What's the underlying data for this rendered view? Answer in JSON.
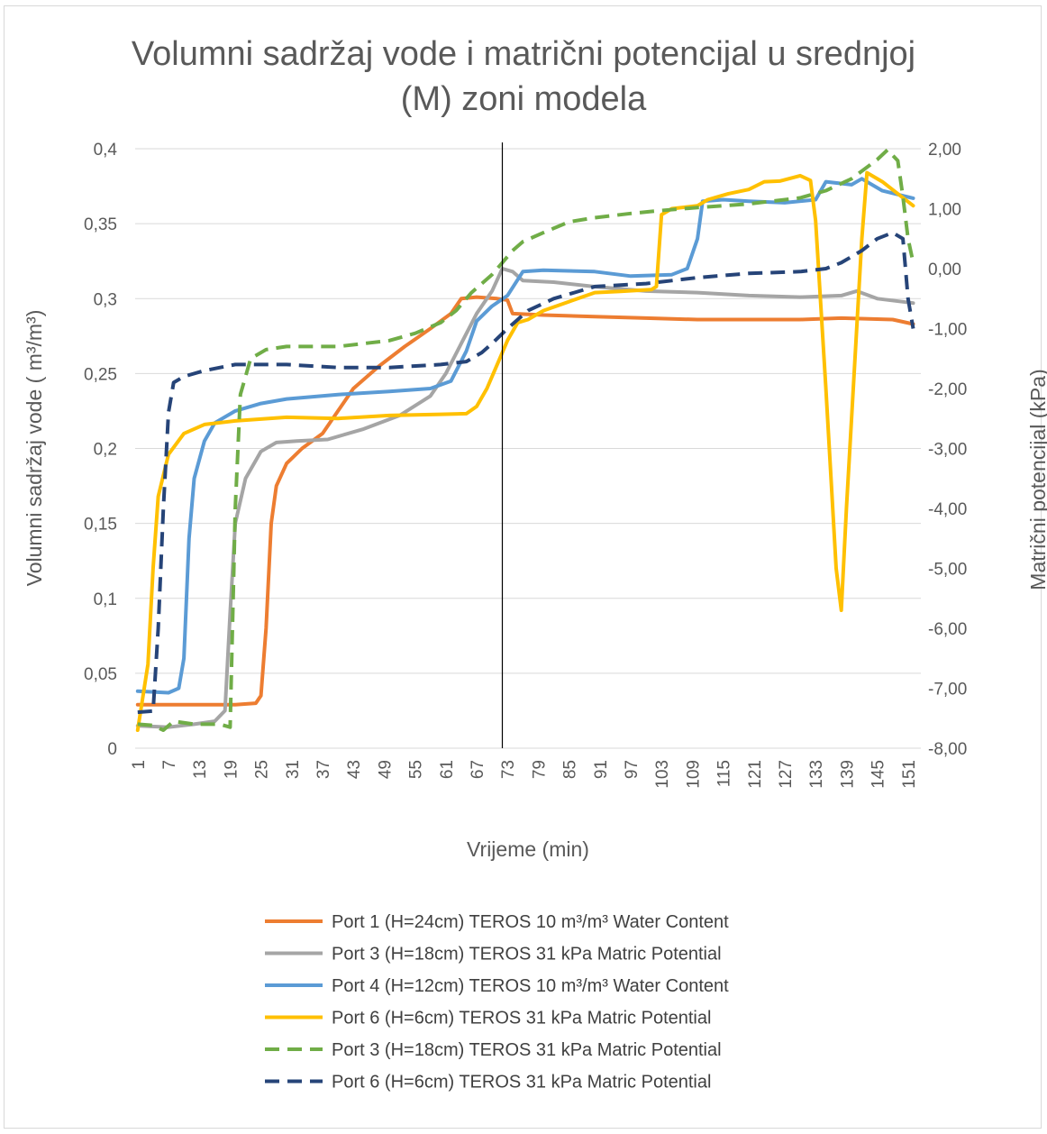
{
  "chart_data": {
    "type": "line",
    "title_line1": "Volumni sadržaj vode i matrični potencijal u srednjoj",
    "title_line2": "(M) zoni modela",
    "xlabel": "Vrijeme (min)",
    "ylabel_left": "Volumni sadržaj vode ( m³/m³)",
    "ylabel_right": "Matrični potencijal (kPa)",
    "x_range": [
      1,
      153
    ],
    "x_tick_labels": [
      "1",
      "7",
      "13",
      "19",
      "25",
      "31",
      "37",
      "43",
      "49",
      "55",
      "61",
      "67",
      "73",
      "79",
      "85",
      "91",
      "97",
      "103",
      "109",
      "115",
      "121",
      "127",
      "133",
      "139",
      "145",
      "151"
    ],
    "y_left_range": [
      0,
      0.4
    ],
    "y_left_ticks": [
      "0",
      "0,05",
      "0,1",
      "0,15",
      "0,2",
      "0,25",
      "0,3",
      "0,35",
      "0,4"
    ],
    "y_right_range": [
      -8,
      2
    ],
    "y_right_ticks": [
      "-8,00",
      "-7,00",
      "-6,00",
      "-5,00",
      "-4,00",
      "-3,00",
      "-2,00",
      "-1,00",
      "0,00",
      "1,00",
      "2,00"
    ],
    "grid": true,
    "legend_position": "bottom",
    "vertical_marker_x": 72,
    "series": [
      {
        "name": "Port 1 (H=24cm) TEROS 10  m³/m³ Water Content",
        "color": "#ED7D31",
        "dash": "solid",
        "axis": "left",
        "points": [
          [
            1,
            0.029
          ],
          [
            10,
            0.029
          ],
          [
            20,
            0.029
          ],
          [
            24,
            0.03
          ],
          [
            25,
            0.035
          ],
          [
            26,
            0.08
          ],
          [
            27,
            0.15
          ],
          [
            28,
            0.175
          ],
          [
            30,
            0.19
          ],
          [
            33,
            0.2
          ],
          [
            37,
            0.21
          ],
          [
            40,
            0.225
          ],
          [
            43,
            0.24
          ],
          [
            48,
            0.255
          ],
          [
            53,
            0.268
          ],
          [
            58,
            0.28
          ],
          [
            62,
            0.29
          ],
          [
            64,
            0.3
          ],
          [
            67,
            0.301
          ],
          [
            71,
            0.3
          ],
          [
            73,
            0.299
          ],
          [
            74,
            0.29
          ],
          [
            80,
            0.289
          ],
          [
            90,
            0.288
          ],
          [
            100,
            0.287
          ],
          [
            110,
            0.286
          ],
          [
            120,
            0.286
          ],
          [
            130,
            0.286
          ],
          [
            138,
            0.287
          ],
          [
            148,
            0.286
          ],
          [
            152,
            0.283
          ]
        ]
      },
      {
        "name": "Port 3 (H=18cm) TEROS 31  kPa Matric Potential",
        "color": "#A5A5A5",
        "dash": "solid",
        "axis": "left",
        "points": [
          [
            1,
            0.015
          ],
          [
            7,
            0.014
          ],
          [
            12,
            0.016
          ],
          [
            16,
            0.018
          ],
          [
            18,
            0.025
          ],
          [
            19,
            0.09
          ],
          [
            20,
            0.15
          ],
          [
            22,
            0.18
          ],
          [
            25,
            0.198
          ],
          [
            28,
            0.204
          ],
          [
            32,
            0.205
          ],
          [
            38,
            0.206
          ],
          [
            45,
            0.213
          ],
          [
            52,
            0.222
          ],
          [
            58,
            0.235
          ],
          [
            61,
            0.25
          ],
          [
            64,
            0.27
          ],
          [
            67,
            0.29
          ],
          [
            70,
            0.305
          ],
          [
            72,
            0.32
          ],
          [
            74,
            0.318
          ],
          [
            76,
            0.312
          ],
          [
            82,
            0.311
          ],
          [
            90,
            0.308
          ],
          [
            100,
            0.305
          ],
          [
            110,
            0.304
          ],
          [
            120,
            0.302
          ],
          [
            130,
            0.301
          ],
          [
            138,
            0.302
          ],
          [
            141,
            0.305
          ],
          [
            145,
            0.3
          ],
          [
            152,
            0.297
          ]
        ]
      },
      {
        "name": "Port 4 (H=12cm) TEROS 10  m³/m³ Water Content",
        "color": "#5B9BD5",
        "dash": "solid",
        "axis": "left",
        "points": [
          [
            1,
            0.038
          ],
          [
            7,
            0.037
          ],
          [
            9,
            0.04
          ],
          [
            10,
            0.06
          ],
          [
            11,
            0.14
          ],
          [
            12,
            0.18
          ],
          [
            14,
            0.205
          ],
          [
            16,
            0.217
          ],
          [
            20,
            0.225
          ],
          [
            25,
            0.23
          ],
          [
            30,
            0.233
          ],
          [
            40,
            0.236
          ],
          [
            50,
            0.238
          ],
          [
            58,
            0.24
          ],
          [
            62,
            0.245
          ],
          [
            65,
            0.265
          ],
          [
            67,
            0.285
          ],
          [
            70,
            0.295
          ],
          [
            73,
            0.302
          ],
          [
            76,
            0.318
          ],
          [
            80,
            0.319
          ],
          [
            90,
            0.318
          ],
          [
            97,
            0.315
          ],
          [
            105,
            0.316
          ],
          [
            108,
            0.32
          ],
          [
            110,
            0.34
          ],
          [
            111,
            0.365
          ],
          [
            115,
            0.366
          ],
          [
            120,
            0.365
          ],
          [
            127,
            0.364
          ],
          [
            133,
            0.366
          ],
          [
            135,
            0.378
          ],
          [
            140,
            0.376
          ],
          [
            142,
            0.38
          ],
          [
            146,
            0.372
          ],
          [
            152,
            0.367
          ]
        ]
      },
      {
        "name": "Port 6 (H=6cm) TEROS 31  kPa Matric Potential",
        "color": "#FFC000",
        "dash": "solid",
        "axis": "right",
        "points": [
          [
            1,
            -7.7
          ],
          [
            3,
            -6.6
          ],
          [
            4,
            -5
          ],
          [
            5,
            -3.8
          ],
          [
            7,
            -3.1
          ],
          [
            10,
            -2.75
          ],
          [
            14,
            -2.6
          ],
          [
            20,
            -2.54
          ],
          [
            30,
            -2.48
          ],
          [
            40,
            -2.5
          ],
          [
            50,
            -2.45
          ],
          [
            60,
            -2.43
          ],
          [
            65,
            -2.42
          ],
          [
            67,
            -2.3
          ],
          [
            69,
            -2
          ],
          [
            71,
            -1.6
          ],
          [
            73,
            -1.2
          ],
          [
            75,
            -0.9
          ],
          [
            77,
            -0.85
          ],
          [
            80,
            -0.7
          ],
          [
            85,
            -0.55
          ],
          [
            90,
            -0.4
          ],
          [
            95,
            -0.38
          ],
          [
            101,
            -0.35
          ],
          [
            102,
            -0.3
          ],
          [
            103,
            0.9
          ],
          [
            105,
            1.0
          ],
          [
            110,
            1.05
          ],
          [
            112,
            1.15
          ],
          [
            116,
            1.25
          ],
          [
            120,
            1.32
          ],
          [
            123,
            1.45
          ],
          [
            126,
            1.46
          ],
          [
            130,
            1.55
          ],
          [
            132,
            1.47
          ],
          [
            133,
            0.8
          ],
          [
            135,
            -2
          ],
          [
            137,
            -5
          ],
          [
            138,
            -5.7
          ],
          [
            139,
            -4
          ],
          [
            141,
            -1
          ],
          [
            142,
            0.5
          ],
          [
            143,
            1.6
          ],
          [
            146,
            1.45
          ],
          [
            149,
            1.25
          ],
          [
            152,
            1.05
          ]
        ]
      },
      {
        "name": "Port 3 (H=18cm) TEROS 31  kPa Matric Potential",
        "color": "#70AD47",
        "dash": "dashed",
        "axis": "right",
        "points": [
          [
            1,
            -7.6
          ],
          [
            4,
            -7.62
          ],
          [
            6,
            -7.7
          ],
          [
            8,
            -7.55
          ],
          [
            12,
            -7.6
          ],
          [
            17,
            -7.6
          ],
          [
            19,
            -7.65
          ],
          [
            20,
            -4
          ],
          [
            21,
            -2.1
          ],
          [
            23,
            -1.5
          ],
          [
            26,
            -1.35
          ],
          [
            30,
            -1.3
          ],
          [
            40,
            -1.3
          ],
          [
            50,
            -1.2
          ],
          [
            55,
            -1.08
          ],
          [
            60,
            -0.9
          ],
          [
            63,
            -0.7
          ],
          [
            66,
            -0.4
          ],
          [
            70,
            -0.1
          ],
          [
            72,
            0.1
          ],
          [
            74,
            0.3
          ],
          [
            76,
            0.45
          ],
          [
            80,
            0.6
          ],
          [
            85,
            0.78
          ],
          [
            90,
            0.85
          ],
          [
            97,
            0.92
          ],
          [
            103,
            0.97
          ],
          [
            110,
            1.02
          ],
          [
            120,
            1.08
          ],
          [
            130,
            1.18
          ],
          [
            135,
            1.3
          ],
          [
            140,
            1.5
          ],
          [
            145,
            1.82
          ],
          [
            147,
            1.98
          ],
          [
            149,
            1.8
          ],
          [
            150,
            1.2
          ],
          [
            151,
            0.5
          ],
          [
            152,
            0.1
          ]
        ]
      },
      {
        "name": "Port 6 (H=6cm) TEROS 31  kPa Matric Potential",
        "color": "#264478",
        "dash": "dashed",
        "axis": "right",
        "points": [
          [
            1,
            -7.4
          ],
          [
            4,
            -7.38
          ],
          [
            5,
            -6
          ],
          [
            6,
            -4
          ],
          [
            7,
            -2.4
          ],
          [
            8,
            -1.9
          ],
          [
            10,
            -1.8
          ],
          [
            14,
            -1.7
          ],
          [
            20,
            -1.6
          ],
          [
            30,
            -1.6
          ],
          [
            40,
            -1.65
          ],
          [
            50,
            -1.65
          ],
          [
            60,
            -1.6
          ],
          [
            65,
            -1.55
          ],
          [
            68,
            -1.4
          ],
          [
            70,
            -1.25
          ],
          [
            73,
            -1
          ],
          [
            77,
            -0.7
          ],
          [
            82,
            -0.5
          ],
          [
            90,
            -0.3
          ],
          [
            100,
            -0.25
          ],
          [
            105,
            -0.2
          ],
          [
            110,
            -0.15
          ],
          [
            120,
            -0.08
          ],
          [
            130,
            -0.05
          ],
          [
            135,
            0
          ],
          [
            138,
            0.1
          ],
          [
            142,
            0.3
          ],
          [
            145,
            0.5
          ],
          [
            148,
            0.6
          ],
          [
            150,
            0.5
          ],
          [
            151,
            -0.5
          ],
          [
            152,
            -1
          ]
        ]
      }
    ]
  }
}
